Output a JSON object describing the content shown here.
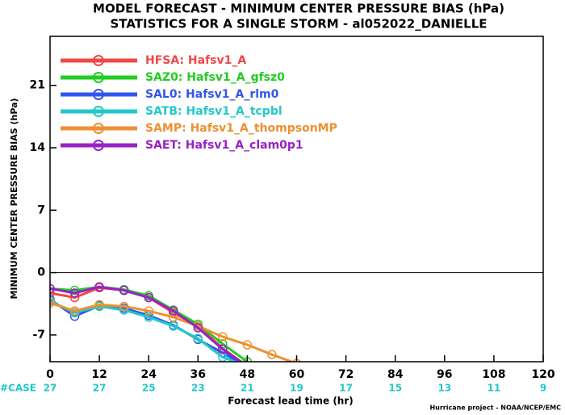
{
  "chart_data": {
    "type": "line",
    "title": "MODEL FORECAST - MINIMUM CENTER PRESSURE BIAS (hPa)",
    "subtitle": "STATISTICS FOR A SINGLE STORM - al052022_DANIELLE",
    "y_label": "MINIMUM CENTER PRESSURE BIAS (hPa)",
    "x_label": "Forecast lead time (hr)",
    "footer": "Hurricane project - NOAA/NCEP/EMC",
    "x": [
      0,
      6,
      12,
      18,
      24,
      30,
      36,
      42,
      48,
      54,
      60
    ],
    "series": [
      {
        "name": "HFSA: Hafsv1_A",
        "color": "#f04848",
        "values": [
          -2.3,
          -2.8,
          -1.7,
          -2.0,
          -2.8,
          -4.5,
          -6.0,
          -8.5,
          -10.5,
          null,
          null
        ]
      },
      {
        "name": "SAZ0: Hafsv1_A_gfsz0",
        "color": "#22cc22",
        "values": [
          -1.8,
          -2.0,
          -1.6,
          -1.9,
          -2.6,
          -4.2,
          -5.8,
          -8.0,
          -10.0,
          null,
          null
        ]
      },
      {
        "name": "SAL0: Hafsv1_A_rlm0",
        "color": "#3355ee",
        "values": [
          -3.0,
          -4.9,
          -3.7,
          -4.0,
          -4.8,
          -5.9,
          -7.5,
          -9.0,
          -10.6,
          null,
          null
        ]
      },
      {
        "name": "SATB: Hafsv1_A_tcpbl",
        "color": "#22c8c8",
        "values": [
          -3.2,
          -4.5,
          -3.8,
          -4.2,
          -5.0,
          -6.0,
          -7.4,
          -9.5,
          -10.5,
          null,
          null
        ]
      },
      {
        "name": "SAMP: Hafsv1_A_thompsonMP",
        "color": "#ee9030",
        "values": [
          -3.4,
          -4.3,
          -3.6,
          -3.8,
          -4.3,
          -5.0,
          -6.0,
          -7.2,
          -8.1,
          -9.2,
          -10.2
        ]
      },
      {
        "name": "SAET: Hafsv1_A_clam0p1",
        "color": "#9922c4",
        "values": [
          -1.8,
          -2.3,
          -1.6,
          -2.0,
          -2.8,
          -4.3,
          -6.2,
          -8.6,
          -10.5,
          null,
          null
        ]
      }
    ],
    "xlim": [
      0,
      120
    ],
    "xticks": [
      0,
      12,
      24,
      36,
      48,
      60,
      72,
      84,
      96,
      108,
      120
    ],
    "ylim": [
      -10,
      26.5
    ],
    "yticks": [
      -7,
      0,
      7,
      14,
      21
    ],
    "zero_line": true,
    "case_label": "#CASE",
    "case_counts": [
      27,
      27,
      25,
      23,
      21,
      19,
      17,
      15,
      13,
      11,
      9
    ],
    "case_color": "#22c8c8",
    "legend": "upper left"
  }
}
